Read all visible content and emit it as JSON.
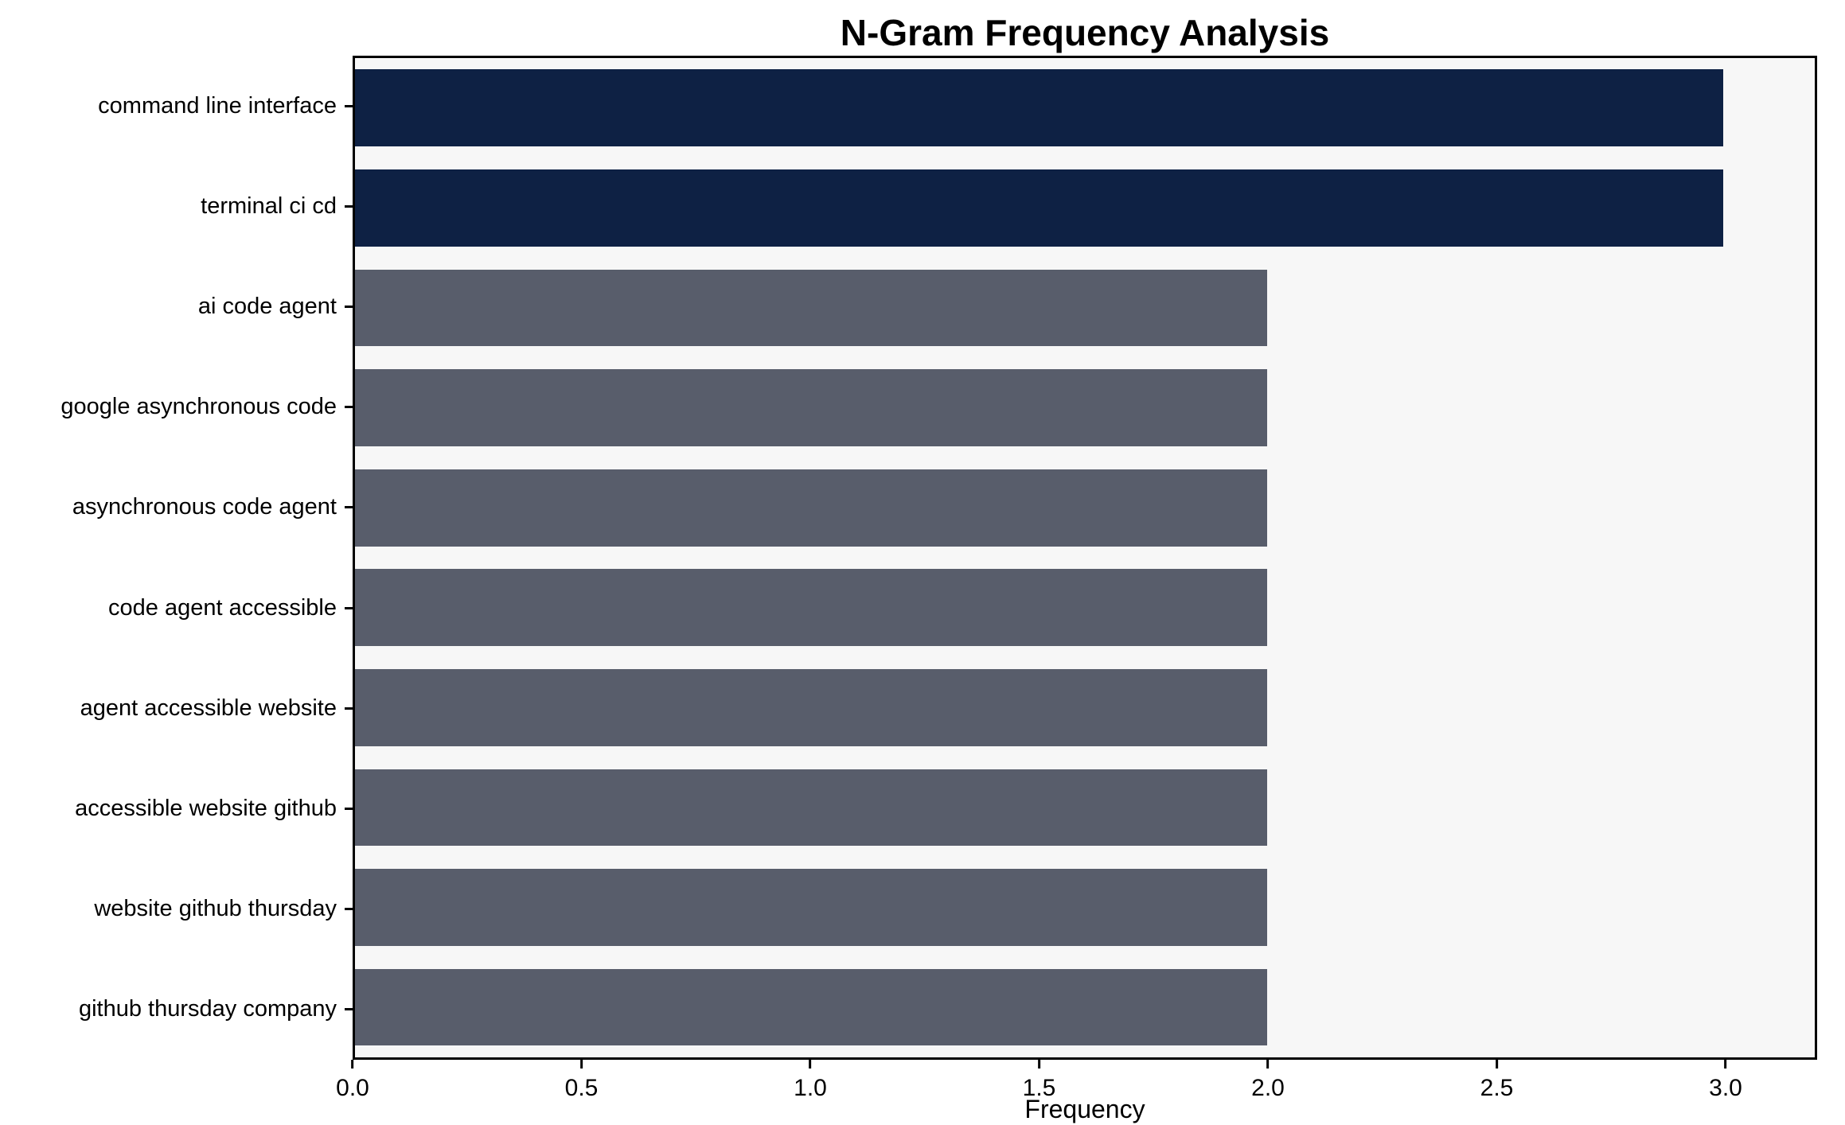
{
  "chart_data": {
    "type": "bar",
    "orientation": "horizontal",
    "title": "N-Gram Frequency Analysis",
    "xlabel": "Frequency",
    "ylabel": "",
    "xlim": [
      0,
      3.2
    ],
    "grid": false,
    "legend_position": "none",
    "plot_background": "#f7f7f7",
    "figure_background": "#ffffff",
    "categories": [
      "command line interface",
      "terminal ci cd",
      "ai code agent",
      "google asynchronous code",
      "asynchronous code agent",
      "code agent accessible",
      "agent accessible website",
      "accessible website github",
      "website github thursday",
      "github thursday company"
    ],
    "values": [
      3,
      3,
      2,
      2,
      2,
      2,
      2,
      2,
      2,
      2
    ],
    "bar_colors": [
      "#0e2144",
      "#0e2144",
      "#585d6b",
      "#585d6b",
      "#585d6b",
      "#585d6b",
      "#585d6b",
      "#585d6b",
      "#585d6b",
      "#585d6b"
    ],
    "x_ticks": [
      {
        "value": 0.0,
        "label": "0.0"
      },
      {
        "value": 0.5,
        "label": "0.5"
      },
      {
        "value": 1.0,
        "label": "1.0"
      },
      {
        "value": 1.5,
        "label": "1.5"
      },
      {
        "value": 2.0,
        "label": "2.0"
      },
      {
        "value": 2.5,
        "label": "2.5"
      },
      {
        "value": 3.0,
        "label": "3.0"
      }
    ]
  }
}
